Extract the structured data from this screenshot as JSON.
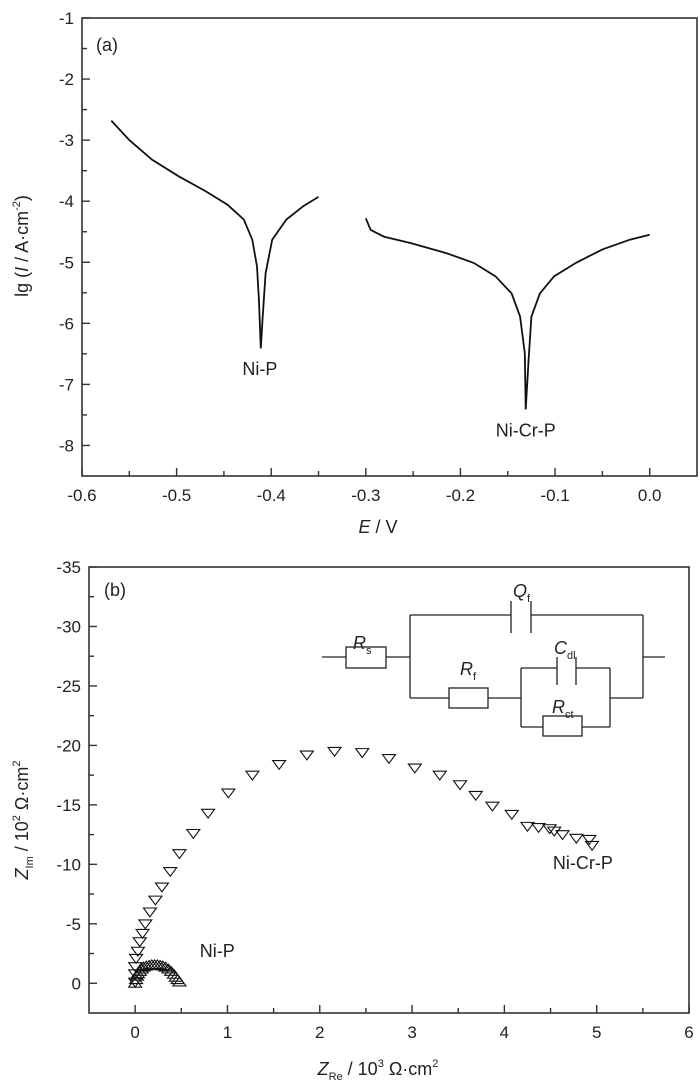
{
  "chart_data": [
    {
      "type": "line",
      "panel_label": "(a)",
      "xlabel": {
        "italic": "E",
        "rest": " / V"
      },
      "ylabel": {
        "pre": "lg (",
        "italic": "I",
        "rest": " / A·cm",
        "sup": "-2",
        "post": ")"
      },
      "xlim": [
        -0.6,
        0.05
      ],
      "ylim": [
        -8.5,
        -1
      ],
      "xticks": [
        "-0.6",
        "-0.5",
        "-0.4",
        "-0.3",
        "-0.2",
        "-0.1",
        "0.0"
      ],
      "xtick_values": [
        -0.6,
        -0.5,
        -0.4,
        -0.3,
        -0.2,
        -0.1,
        0.0
      ],
      "yticks": [
        "-1",
        "-2",
        "-3",
        "-4",
        "-5",
        "-6",
        "-7",
        "-8"
      ],
      "ytick_values": [
        -1,
        -2,
        -3,
        -4,
        -5,
        -6,
        -7,
        -8
      ],
      "series": [
        {
          "name": "Ni-P",
          "label_at": [
            -0.412,
            -6.85
          ],
          "points": [
            [
              -0.569,
              -2.68
            ],
            [
              -0.55,
              -3.0
            ],
            [
              -0.526,
              -3.32
            ],
            [
              -0.498,
              -3.59
            ],
            [
              -0.469,
              -3.84
            ],
            [
              -0.446,
              -4.06
            ],
            [
              -0.429,
              -4.3
            ],
            [
              -0.42,
              -4.63
            ],
            [
              -0.415,
              -5.07
            ],
            [
              -0.413,
              -5.61
            ],
            [
              -0.411,
              -6.41
            ],
            [
              -0.409,
              -5.89
            ],
            [
              -0.406,
              -5.18
            ],
            [
              -0.399,
              -4.63
            ],
            [
              -0.384,
              -4.3
            ],
            [
              -0.366,
              -4.08
            ],
            [
              -0.35,
              -3.93
            ]
          ]
        },
        {
          "name": "Ni-Cr-P",
          "label_at": [
            -0.131,
            -7.85
          ],
          "points": [
            [
              -0.3,
              -4.28
            ],
            [
              -0.295,
              -4.47
            ],
            [
              -0.281,
              -4.58
            ],
            [
              -0.252,
              -4.69
            ],
            [
              -0.215,
              -4.85
            ],
            [
              -0.186,
              -5.01
            ],
            [
              -0.163,
              -5.23
            ],
            [
              -0.146,
              -5.51
            ],
            [
              -0.137,
              -5.89
            ],
            [
              -0.132,
              -6.49
            ],
            [
              -0.131,
              -7.41
            ],
            [
              -0.128,
              -6.6
            ],
            [
              -0.125,
              -5.89
            ],
            [
              -0.116,
              -5.51
            ],
            [
              -0.101,
              -5.23
            ],
            [
              -0.078,
              -5.01
            ],
            [
              -0.05,
              -4.79
            ],
            [
              -0.021,
              -4.63
            ],
            [
              0.0,
              -4.55
            ]
          ]
        }
      ]
    },
    {
      "type": "scatter",
      "panel_label": "(b)",
      "xlabel": {
        "italic": "Z",
        "sub": "Re",
        "rest": " / 10",
        "sup": "3",
        "post": " Ω·cm",
        "sup2": "2"
      },
      "ylabel": {
        "italic": "Z",
        "sub": "Im",
        "rest": " / 10",
        "sup": "2",
        "post": " Ω·cm",
        "sup2": "2"
      },
      "xlim": [
        -0.5,
        6
      ],
      "ylim": [
        2.5,
        -35
      ],
      "xticks": [
        "0",
        "1",
        "2",
        "3",
        "4",
        "5",
        "6"
      ],
      "xtick_values": [
        0,
        1,
        2,
        3,
        4,
        5,
        6
      ],
      "yticks": [
        "-35",
        "-30",
        "-25",
        "-20",
        "-15",
        "-10",
        "-5",
        "0"
      ],
      "ytick_values": [
        -35,
        -30,
        -25,
        -20,
        -15,
        -10,
        -5,
        0
      ],
      "series": [
        {
          "name": "Ni-P",
          "marker": "triangle-up",
          "label_at": [
            0.7,
            -2.2
          ],
          "points": [
            [
              0,
              0
            ],
            [
              0.01,
              -0.3
            ],
            [
              0.02,
              -0.6
            ],
            [
              0.03,
              -0.8
            ],
            [
              0.05,
              -1.0
            ],
            [
              0.07,
              -1.2
            ],
            [
              0.09,
              -1.35
            ],
            [
              0.12,
              -1.45
            ],
            [
              0.15,
              -1.5
            ],
            [
              0.18,
              -1.55
            ],
            [
              0.21,
              -1.55
            ],
            [
              0.24,
              -1.55
            ],
            [
              0.27,
              -1.5
            ],
            [
              0.3,
              -1.45
            ],
            [
              0.33,
              -1.35
            ],
            [
              0.36,
              -1.2
            ],
            [
              0.39,
              -1.0
            ],
            [
              0.42,
              -0.75
            ],
            [
              0.44,
              -0.5
            ],
            [
              0.46,
              -0.3
            ],
            [
              0.48,
              -0.1
            ]
          ]
        },
        {
          "name": "Ni-Cr-P",
          "marker": "triangle-down",
          "label_at": [
            4.85,
            -9.6
          ],
          "points": [
            [
              0,
              -0.1
            ],
            [
              0,
              -0.8
            ],
            [
              0,
              -1.4
            ],
            [
              0.01,
              -2.1
            ],
            [
              0.03,
              -2.7
            ],
            [
              0.05,
              -3.5
            ],
            [
              0.08,
              -4.2
            ],
            [
              0.11,
              -5.0
            ],
            [
              0.16,
              -6.0
            ],
            [
              0.22,
              -7.0
            ],
            [
              0.29,
              -8.1
            ],
            [
              0.38,
              -9.4
            ],
            [
              0.48,
              -10.9
            ],
            [
              0.63,
              -12.6
            ],
            [
              0.79,
              -14.3
            ],
            [
              1.01,
              -16.0
            ],
            [
              1.27,
              -17.5
            ],
            [
              1.56,
              -18.4
            ],
            [
              1.86,
              -19.2
            ],
            [
              2.16,
              -19.5
            ],
            [
              2.46,
              -19.4
            ],
            [
              2.75,
              -18.9
            ],
            [
              3.03,
              -18.1
            ],
            [
              3.3,
              -17.5
            ],
            [
              3.52,
              -16.7
            ],
            [
              3.69,
              -15.8
            ],
            [
              3.87,
              -14.9
            ],
            [
              4.08,
              -14.2
            ],
            [
              4.25,
              -13.2
            ],
            [
              4.37,
              -13.1
            ],
            [
              4.49,
              -13.0
            ],
            [
              4.54,
              -12.8
            ],
            [
              4.63,
              -12.5
            ],
            [
              4.78,
              -12.2
            ],
            [
              4.92,
              -12.1
            ],
            [
              4.95,
              -11.6
            ]
          ]
        }
      ],
      "inset_circuit": {
        "Rs": {
          "main": "R",
          "sub": "s"
        },
        "Qf": {
          "main": "Q",
          "sub": "f"
        },
        "Rf": {
          "main": "R",
          "sub": "f"
        },
        "Cdl": {
          "main": "C",
          "sub": "dl"
        },
        "Rct": {
          "main": "R",
          "sub": "ct"
        }
      }
    }
  ]
}
